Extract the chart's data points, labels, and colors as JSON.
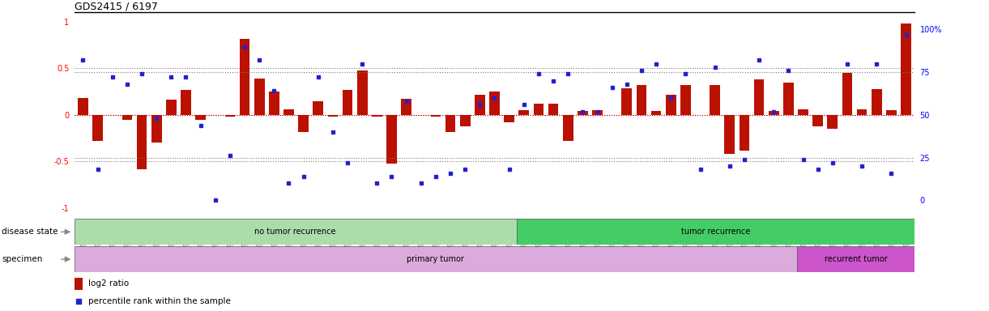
{
  "title": "GDS2415 / 6197",
  "samples": [
    "GSM110395",
    "GSM110396",
    "GSM110397",
    "GSM110398",
    "GSM110399",
    "GSM110400",
    "GSM110401",
    "GSM110406",
    "GSM110407",
    "GSM110409",
    "GSM110410",
    "GSM110413",
    "GSM110414",
    "GSM110415",
    "GSM110416",
    "GSM110418",
    "GSM110419",
    "GSM110420",
    "GSM110421",
    "GSM110424",
    "GSM110425",
    "GSM110427",
    "GSM110428",
    "GSM110430",
    "GSM110431",
    "GSM110432",
    "GSM110434",
    "GSM110435",
    "GSM110437",
    "GSM110438",
    "GSM110388",
    "GSM110392",
    "GSM110394",
    "GSM110402",
    "GSM110411",
    "GSM110412",
    "GSM110417",
    "GSM110422",
    "GSM110426",
    "GSM110429",
    "GSM110433",
    "GSM110436",
    "GSM110440",
    "GSM110441",
    "GSM110444",
    "GSM110445",
    "GSM110449",
    "GSM110451",
    "GSM110391",
    "GSM110439",
    "GSM110442",
    "GSM110443",
    "GSM110447",
    "GSM110448",
    "GSM110450",
    "GSM110452",
    "GSM110453"
  ],
  "log2_ratio": [
    0.18,
    -0.28,
    0.0,
    -0.05,
    -0.58,
    -0.3,
    0.16,
    0.27,
    -0.05,
    0.0,
    -0.02,
    0.82,
    0.39,
    0.25,
    0.06,
    -0.18,
    0.15,
    -0.02,
    0.27,
    0.48,
    -0.02,
    -0.52,
    0.17,
    0.0,
    -0.02,
    -0.18,
    -0.12,
    0.22,
    0.25,
    -0.08,
    0.05,
    0.12,
    0.12,
    -0.28,
    0.04,
    0.05,
    0.0,
    0.29,
    0.32,
    0.04,
    0.22,
    0.32,
    0.0,
    0.32,
    -0.42,
    -0.38,
    0.38,
    0.04,
    0.35,
    0.06,
    -0.12,
    -0.15,
    0.45,
    0.06,
    0.28,
    0.05,
    0.98
  ],
  "percentile": [
    82,
    18,
    72,
    68,
    74,
    48,
    72,
    72,
    44,
    0,
    26,
    90,
    82,
    64,
    10,
    14,
    72,
    40,
    22,
    80,
    10,
    14,
    58,
    10,
    14,
    16,
    18,
    56,
    60,
    18,
    56,
    74,
    70,
    74,
    52,
    52,
    66,
    68,
    76,
    80,
    60,
    74,
    18,
    78,
    20,
    24,
    82,
    52,
    76,
    24,
    18,
    22,
    80,
    20,
    80,
    16,
    97
  ],
  "no_recurrence_count": 30,
  "primary_tumor_count": 49,
  "recurrent_tumor_count": 8,
  "bar_color": "#bb1100",
  "dot_color": "#2222cc",
  "dotted_line_color": "#777777",
  "zero_line_color": "#cc0000",
  "no_recurrence_color": "#aaddaa",
  "recurrence_color": "#44cc66",
  "primary_color": "#ddaadd",
  "recurrent_color": "#cc55cc",
  "background_color": "#ffffff",
  "ylim_left": [
    -1.1,
    1.1
  ],
  "ylim_right": [
    -10,
    110
  ],
  "yticks_left": [
    -1,
    -0.5,
    0,
    0.5
  ],
  "yticks_right": [
    0,
    25,
    50,
    75,
    100
  ],
  "ytick_labels_left": [
    "-1",
    "-0.5",
    "0",
    "0.5"
  ],
  "ytick_labels_right": [
    "0",
    "25",
    "50",
    "75",
    "100%"
  ]
}
